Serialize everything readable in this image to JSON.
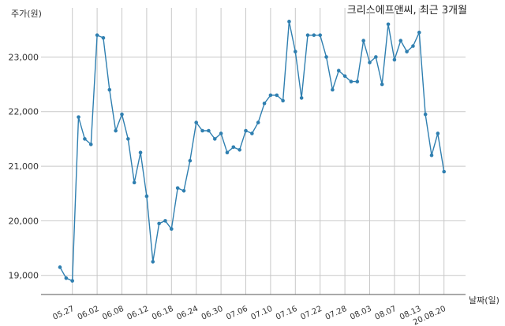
{
  "chart_data": {
    "type": "line",
    "title": "크리스에프앤씨, 최근 3개월",
    "ylabel": "주가(원)",
    "xlabel": "날짜(일)",
    "ylim": [
      18650,
      23900
    ],
    "yticks": [
      19000,
      20000,
      21000,
      22000,
      23000
    ],
    "ytick_labels": [
      "19,000",
      "20,000",
      "21,000",
      "22,000",
      "23,000"
    ],
    "xtick_labels": [
      "05.27",
      "06.02",
      "06.08",
      "06.12",
      "06.18",
      "06.24",
      "06.30",
      "07.06",
      "07.10",
      "07.16",
      "07.22",
      "07.28",
      "08.03",
      "08.07",
      "08.13",
      "20.08.20"
    ],
    "xtick_index": [
      2,
      6,
      10,
      14,
      18,
      22,
      26,
      30,
      34,
      38,
      42,
      46,
      50,
      54,
      58,
      62
    ],
    "grid": true,
    "color": "#2f7fb0",
    "series": [
      {
        "name": "",
        "values": [
          19150,
          18950,
          18900,
          21900,
          21500,
          21400,
          23400,
          23350,
          22400,
          21650,
          21950,
          21500,
          20700,
          21250,
          20450,
          19250,
          19950,
          20000,
          19850,
          20600,
          20550,
          21100,
          21800,
          21650,
          21650,
          21500,
          21600,
          21250,
          21350,
          21300,
          21650,
          21600,
          21800,
          22150,
          22300,
          22300,
          22200,
          23650,
          23100,
          22250,
          23400,
          23400,
          23400,
          23000,
          22400,
          22750,
          22650,
          22550,
          22550,
          23300,
          22900,
          23000,
          22500,
          23600,
          22950,
          23300,
          23100,
          23200,
          23450,
          21950,
          21200,
          21600,
          20900
        ]
      }
    ]
  }
}
